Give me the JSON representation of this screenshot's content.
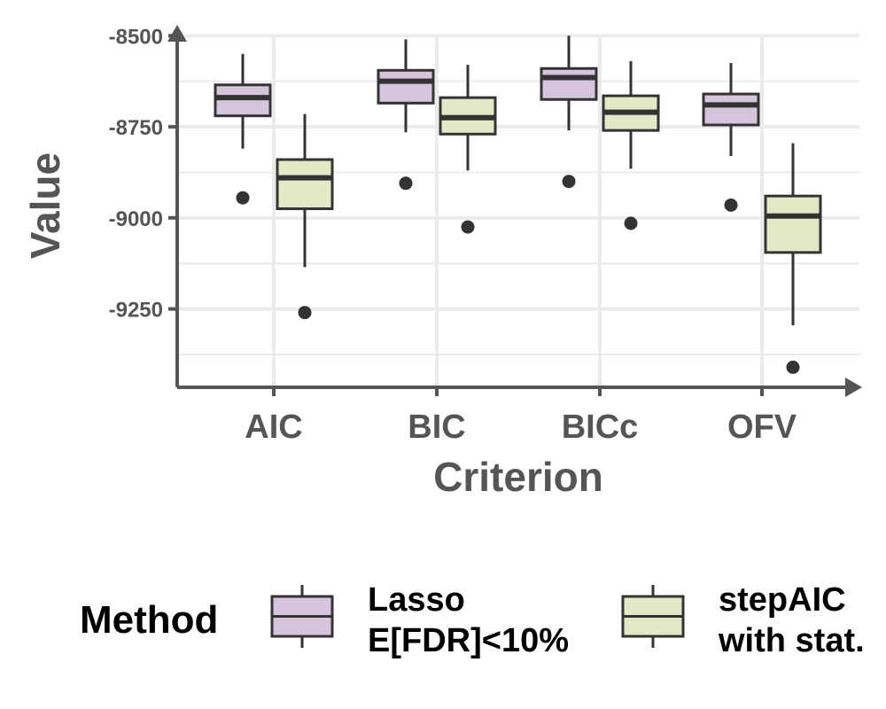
{
  "chart_data": {
    "type": "boxplot",
    "title": "",
    "xlabel": "Criterion",
    "ylabel": "Value",
    "categories": [
      "AIC",
      "BIC",
      "BICc",
      "OFV"
    ],
    "y_ticks": [
      -8500,
      -8750,
      -9000,
      -9250
    ],
    "y_tick_labels": [
      "-8500",
      "-8750",
      "-9000",
      "-9250"
    ],
    "ylim": [
      -9460,
      -8480
    ],
    "grid": true,
    "legend": {
      "title": "Method",
      "position": "bottom"
    },
    "series": [
      {
        "name": "Lasso E[FDR]<10%",
        "label_lines": [
          "Lasso",
          "E[FDR]<10%"
        ],
        "color": "#d5c4dc",
        "boxes": [
          {
            "whisker_low": -8810,
            "q1": -8720,
            "median": -8670,
            "q3": -8635,
            "whisker_high": -8550,
            "outliers": [
              -8945
            ]
          },
          {
            "whisker_low": -8765,
            "q1": -8685,
            "median": -8625,
            "q3": -8595,
            "whisker_high": -8510,
            "outliers": [
              -8905
            ]
          },
          {
            "whisker_low": -8760,
            "q1": -8675,
            "median": -8615,
            "q3": -8590,
            "whisker_high": -8500,
            "outliers": [
              -8900
            ]
          },
          {
            "whisker_low": -8830,
            "q1": -8745,
            "median": -8690,
            "q3": -8660,
            "whisker_high": -8575,
            "outliers": [
              -8965
            ]
          }
        ]
      },
      {
        "name": "stepAIC with stat.",
        "label_lines": [
          "stepAIC",
          "with stat."
        ],
        "color": "#e3e8c7",
        "boxes": [
          {
            "whisker_low": -9135,
            "q1": -8975,
            "median": -8890,
            "q3": -8840,
            "whisker_high": -8715,
            "outliers": [
              -9260
            ]
          },
          {
            "whisker_low": -8870,
            "q1": -8770,
            "median": -8725,
            "q3": -8670,
            "whisker_high": -8580,
            "outliers": [
              -9025
            ]
          },
          {
            "whisker_low": -8865,
            "q1": -8760,
            "median": -8710,
            "q3": -8665,
            "whisker_high": -8570,
            "outliers": [
              -9015
            ]
          },
          {
            "whisker_low": -9295,
            "q1": -9095,
            "median": -8995,
            "q3": -8940,
            "whisker_high": -8795,
            "outliers": [
              -9410
            ]
          }
        ]
      }
    ]
  }
}
